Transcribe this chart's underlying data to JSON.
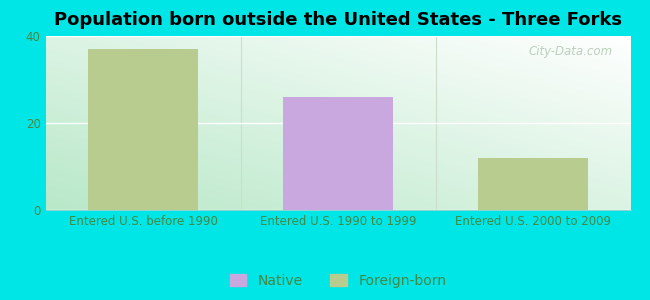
{
  "title": "Population born outside the United States - Three Forks",
  "categories": [
    "Entered U.S. before 1990",
    "Entered U.S. 1990 to 1999",
    "Entered U.S. 2000 to 2009"
  ],
  "native_values": [
    0,
    26,
    0
  ],
  "foreign_values": [
    37,
    0,
    12
  ],
  "native_color": "#c9a8e0",
  "foreign_color": "#b8cc90",
  "background_color": "#00e5e5",
  "plot_bg_color_topleft": "#b8e8c8",
  "plot_bg_color_topright": "#e8f8f0",
  "plot_bg_color_bottomleft": "#d0f0d8",
  "plot_bg_color_bottomright": "#f5fff8",
  "ylim": [
    0,
    40
  ],
  "yticks": [
    0,
    20,
    40
  ],
  "bar_width": 0.28,
  "title_fontsize": 13,
  "tick_fontsize": 8.5,
  "legend_fontsize": 10,
  "watermark": "City-Data.com",
  "tick_color": "#448844",
  "watermark_color": "#b0c8b0"
}
